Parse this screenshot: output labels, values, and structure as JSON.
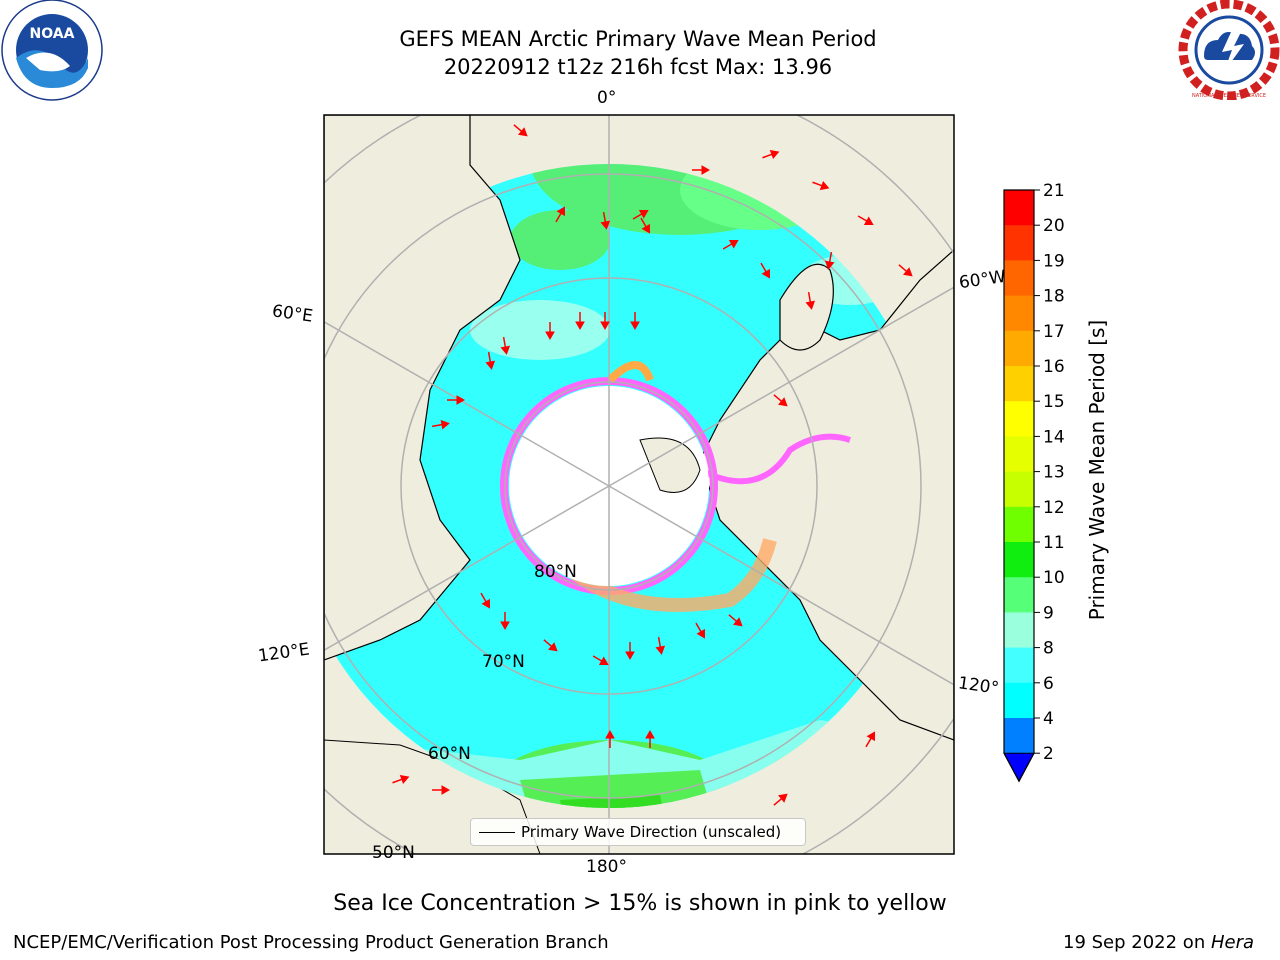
{
  "header": {
    "title_line1": "GEFS MEAN Arctic Primary Wave Mean Period",
    "title_line2": "20220912 t12z 216h fcst   Max: 13.96"
  },
  "logos": {
    "noaa_text": "NOAA",
    "nws_text": "NATIONAL WEATHER SERVICE"
  },
  "map_labels": {
    "lon_0": "0°",
    "lon_60e": "60°E",
    "lon_60w": "60°W",
    "lon_120e": "120°E",
    "lon_120w": "120°",
    "lon_180": "180°",
    "lat_80n": "80°N",
    "lat_70n": "70°N",
    "lat_60n": "60°N",
    "lat_50n": "50°N"
  },
  "legend": {
    "label": "Primary Wave Direction (unscaled)"
  },
  "colorbar": {
    "label": "Primary Wave Mean Period [s]",
    "ticks": [
      "21",
      "20",
      "19",
      "18",
      "17",
      "16",
      "15",
      "14",
      "13",
      "12",
      "11",
      "10",
      "9",
      "8",
      "6",
      "4",
      "2"
    ],
    "colors": [
      "#ff0000",
      "#ff3300",
      "#ff6600",
      "#ff8800",
      "#ffaa00",
      "#ffd000",
      "#ffff00",
      "#e6ff00",
      "#c8ff00",
      "#70ff00",
      "#10ee10",
      "#55ff77",
      "#99ffdd",
      "#44ffff",
      "#00ffff",
      "#0080ff"
    ],
    "extend_color": "#0000ff"
  },
  "colors": {
    "land": "#efedde",
    "ocean_period": "#33ffff",
    "wave_arrow": "#ff0000",
    "ice": "#ff66ff"
  },
  "footer": {
    "note": "Sea Ice Concentration > 15% is shown in pink to yellow",
    "left": "NCEP/EMC/Verification Post Processing Product Generation Branch",
    "right_prefix": "19 Sep 2022 on ",
    "right_host": "Hera"
  }
}
